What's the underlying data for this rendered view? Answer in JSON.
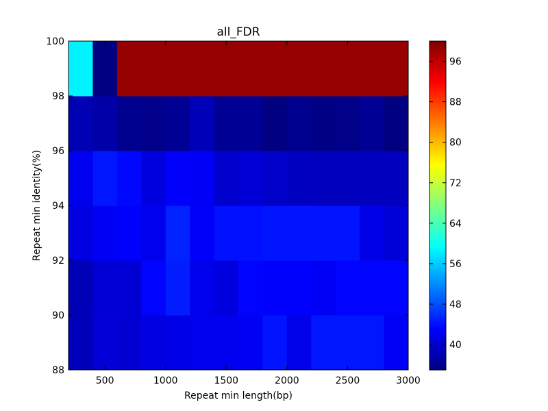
{
  "chart_data": {
    "type": "heatmap",
    "title": "all_FDR",
    "xlabel": "Repeat min length(bp)",
    "ylabel": "Repeat min identity(%)",
    "x_bin_edges": [
      200,
      400,
      600,
      800,
      1000,
      1200,
      1400,
      1600,
      1800,
      2000,
      2200,
      2400,
      2600,
      2800,
      3000
    ],
    "y_bin_edges": [
      88,
      90,
      92,
      94,
      96,
      98,
      100
    ],
    "xlim": [
      200,
      3000
    ],
    "ylim": [
      88,
      100
    ],
    "x_ticks": [
      500,
      1000,
      1500,
      2000,
      2500,
      3000
    ],
    "x_tick_labels": [
      "500",
      "1000",
      "1500",
      "2000",
      "2500",
      "3000"
    ],
    "y_ticks": [
      88,
      90,
      92,
      94,
      96,
      98,
      100
    ],
    "y_tick_labels": [
      "88",
      "90",
      "92",
      "94",
      "96",
      "98",
      "100"
    ],
    "values": [
      [
        38.8,
        40.6,
        40.3,
        41.3,
        41.6,
        42.0,
        42.1,
        42.5,
        44.4,
        41.7,
        44.5,
        44.5,
        44.5,
        42.6
      ],
      [
        38.5,
        40.4,
        40.4,
        43.4,
        44.9,
        41.9,
        41.1,
        43.4,
        43.0,
        43.0,
        42.6,
        43.3,
        43.4,
        43.4
      ],
      [
        41.3,
        42.3,
        43.0,
        42.0,
        45.3,
        42.8,
        44.1,
        44.1,
        44.4,
        44.4,
        44.4,
        44.4,
        41.6,
        40.7
      ],
      [
        42.2,
        44.5,
        43.6,
        41.0,
        42.9,
        42.6,
        39.9,
        40.5,
        39.7,
        39.1,
        39.0,
        39.0,
        39.0,
        39.0
      ],
      [
        38.4,
        37.6,
        36.0,
        35.7,
        36.4,
        38.6,
        36.3,
        36.3,
        35.0,
        36.0,
        35.3,
        35.6,
        36.3,
        35.0
      ],
      [
        58.6,
        35.0,
        98.5,
        98.5,
        98.5,
        98.5,
        98.5,
        98.5,
        98.5,
        98.5,
        98.5,
        98.5,
        98.5,
        98.5
      ]
    ],
    "colorbar": {
      "colormap": "jet",
      "vmin": 35,
      "vmax": 100,
      "ticks": [
        40,
        48,
        56,
        64,
        72,
        80,
        88,
        96
      ],
      "tick_labels": [
        "40",
        "48",
        "56",
        "64",
        "72",
        "80",
        "88",
        "96"
      ]
    },
    "grid": false
  }
}
